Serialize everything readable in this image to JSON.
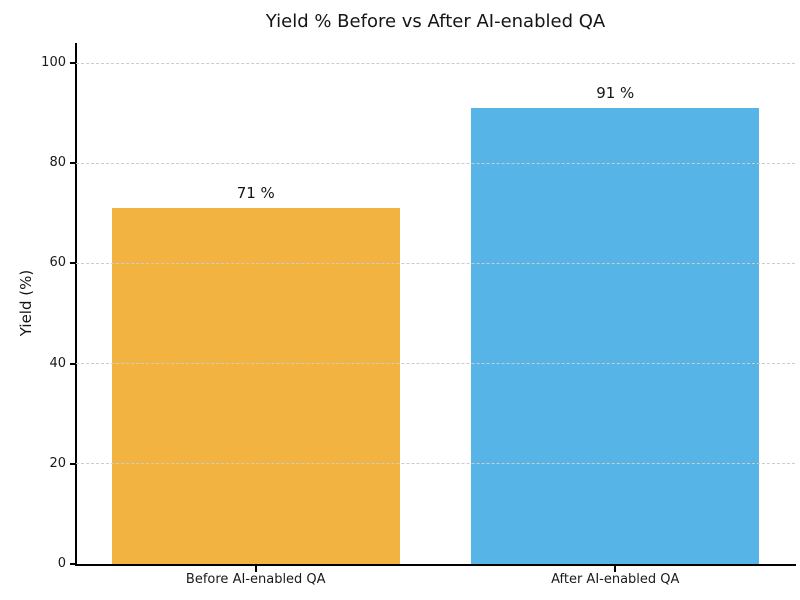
{
  "figure": {
    "title": "Yield % Before vs After AI-enabled QA"
  },
  "chart_data": {
    "type": "bar",
    "title": "Yield % Before vs After AI-enabled QA",
    "categories": [
      "Before AI-enabled QA",
      "After AI-enabled QA"
    ],
    "values": [
      71,
      91
    ],
    "value_labels": [
      "71 %",
      "91 %"
    ],
    "bar_colors": [
      "#F2B341",
      "#57B4E6"
    ],
    "xlabel": "",
    "ylabel": "Yield (%)",
    "ylim": [
      0,
      104
    ],
    "yticks": [
      0,
      20,
      40,
      60,
      80,
      100
    ],
    "grid": "horizontal-dashed",
    "gridline_color": "#cccccc",
    "axis_color": "#000000",
    "legend_position": "none",
    "background_color": "#ffffff"
  }
}
